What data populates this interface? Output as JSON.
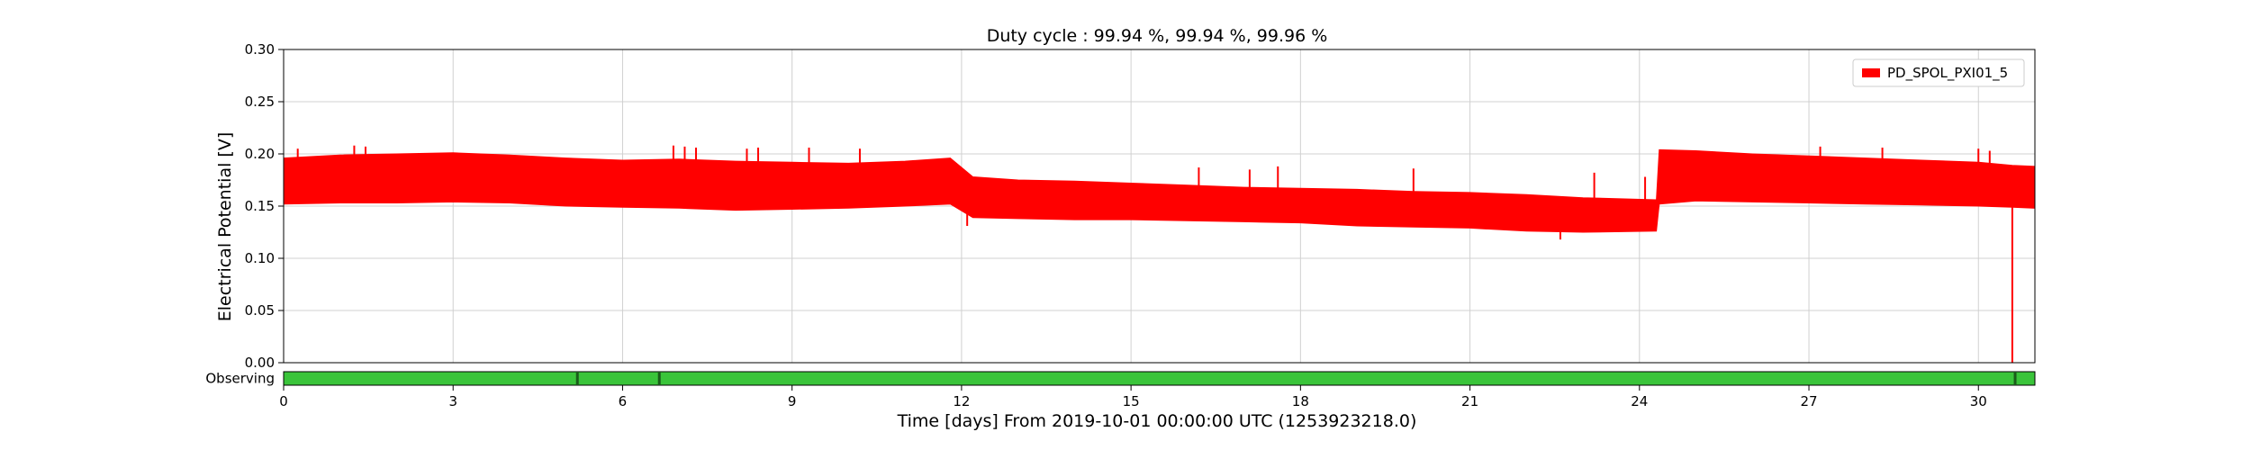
{
  "chart_data": {
    "type": "area",
    "title": "Duty cycle : 99.94 %, 99.94 %, 99.96 %",
    "xlabel": "Time [days] From 2019-10-01 00:00:00 UTC (1253923218.0)",
    "ylabel": "Electrical Potential [V]",
    "xlim": [
      0,
      31
    ],
    "ylim": [
      0,
      0.3
    ],
    "x_ticks": [
      0,
      3,
      6,
      9,
      12,
      15,
      18,
      21,
      24,
      27,
      30
    ],
    "y_ticks": [
      "0.00",
      "0.05",
      "0.10",
      "0.15",
      "0.20",
      "0.25",
      "0.30"
    ],
    "grid": true,
    "legend_position": "top-right",
    "series": [
      {
        "name": "PD_SPOL_PXI01_5",
        "color": "#ff0000",
        "x": [
          0,
          1,
          2,
          3,
          4,
          5,
          6,
          7,
          8,
          9,
          10,
          11,
          11.8,
          12.2,
          13,
          14,
          15,
          16,
          17,
          18,
          19,
          20,
          21,
          22,
          23,
          24.3,
          24.35,
          25,
          26,
          27,
          28,
          29,
          30,
          30.6,
          31
        ],
        "upper": [
          0.196,
          0.199,
          0.2,
          0.201,
          0.199,
          0.196,
          0.194,
          0.195,
          0.193,
          0.192,
          0.191,
          0.193,
          0.196,
          0.178,
          0.175,
          0.174,
          0.172,
          0.17,
          0.168,
          0.167,
          0.166,
          0.164,
          0.163,
          0.161,
          0.158,
          0.156,
          0.204,
          0.203,
          0.2,
          0.198,
          0.196,
          0.194,
          0.192,
          0.189,
          0.188
        ],
        "lower": [
          0.152,
          0.153,
          0.153,
          0.154,
          0.153,
          0.15,
          0.149,
          0.148,
          0.146,
          0.147,
          0.148,
          0.15,
          0.152,
          0.139,
          0.138,
          0.137,
          0.137,
          0.136,
          0.135,
          0.134,
          0.131,
          0.13,
          0.129,
          0.126,
          0.125,
          0.126,
          0.152,
          0.155,
          0.154,
          0.153,
          0.152,
          0.151,
          0.15,
          0.149,
          0.148
        ],
        "spikes": [
          {
            "x": 0.25,
            "y": 0.205
          },
          {
            "x": 1.25,
            "y": 0.208
          },
          {
            "x": 1.45,
            "y": 0.207
          },
          {
            "x": 6.9,
            "y": 0.208
          },
          {
            "x": 7.1,
            "y": 0.207
          },
          {
            "x": 7.3,
            "y": 0.206
          },
          {
            "x": 8.2,
            "y": 0.205
          },
          {
            "x": 8.4,
            "y": 0.206
          },
          {
            "x": 9.3,
            "y": 0.206
          },
          {
            "x": 10.2,
            "y": 0.205
          },
          {
            "x": 16.2,
            "y": 0.187
          },
          {
            "x": 17.1,
            "y": 0.185
          },
          {
            "x": 17.6,
            "y": 0.188
          },
          {
            "x": 20.0,
            "y": 0.186
          },
          {
            "x": 23.2,
            "y": 0.182
          },
          {
            "x": 24.1,
            "y": 0.178
          },
          {
            "x": 27.2,
            "y": 0.207
          },
          {
            "x": 28.3,
            "y": 0.206
          },
          {
            "x": 30.0,
            "y": 0.205
          },
          {
            "x": 30.2,
            "y": 0.203
          }
        ],
        "dips": [
          {
            "x": 12.1,
            "y": 0.131
          },
          {
            "x": 22.6,
            "y": 0.118
          },
          {
            "x": 30.6,
            "y": 0.0
          }
        ]
      }
    ],
    "segments": {
      "label": "Observing",
      "color": "#3ac43a",
      "gap_color": "#1a5c1a",
      "range": [
        0,
        31
      ],
      "gaps": [
        5.2,
        6.65,
        30.65
      ]
    }
  }
}
